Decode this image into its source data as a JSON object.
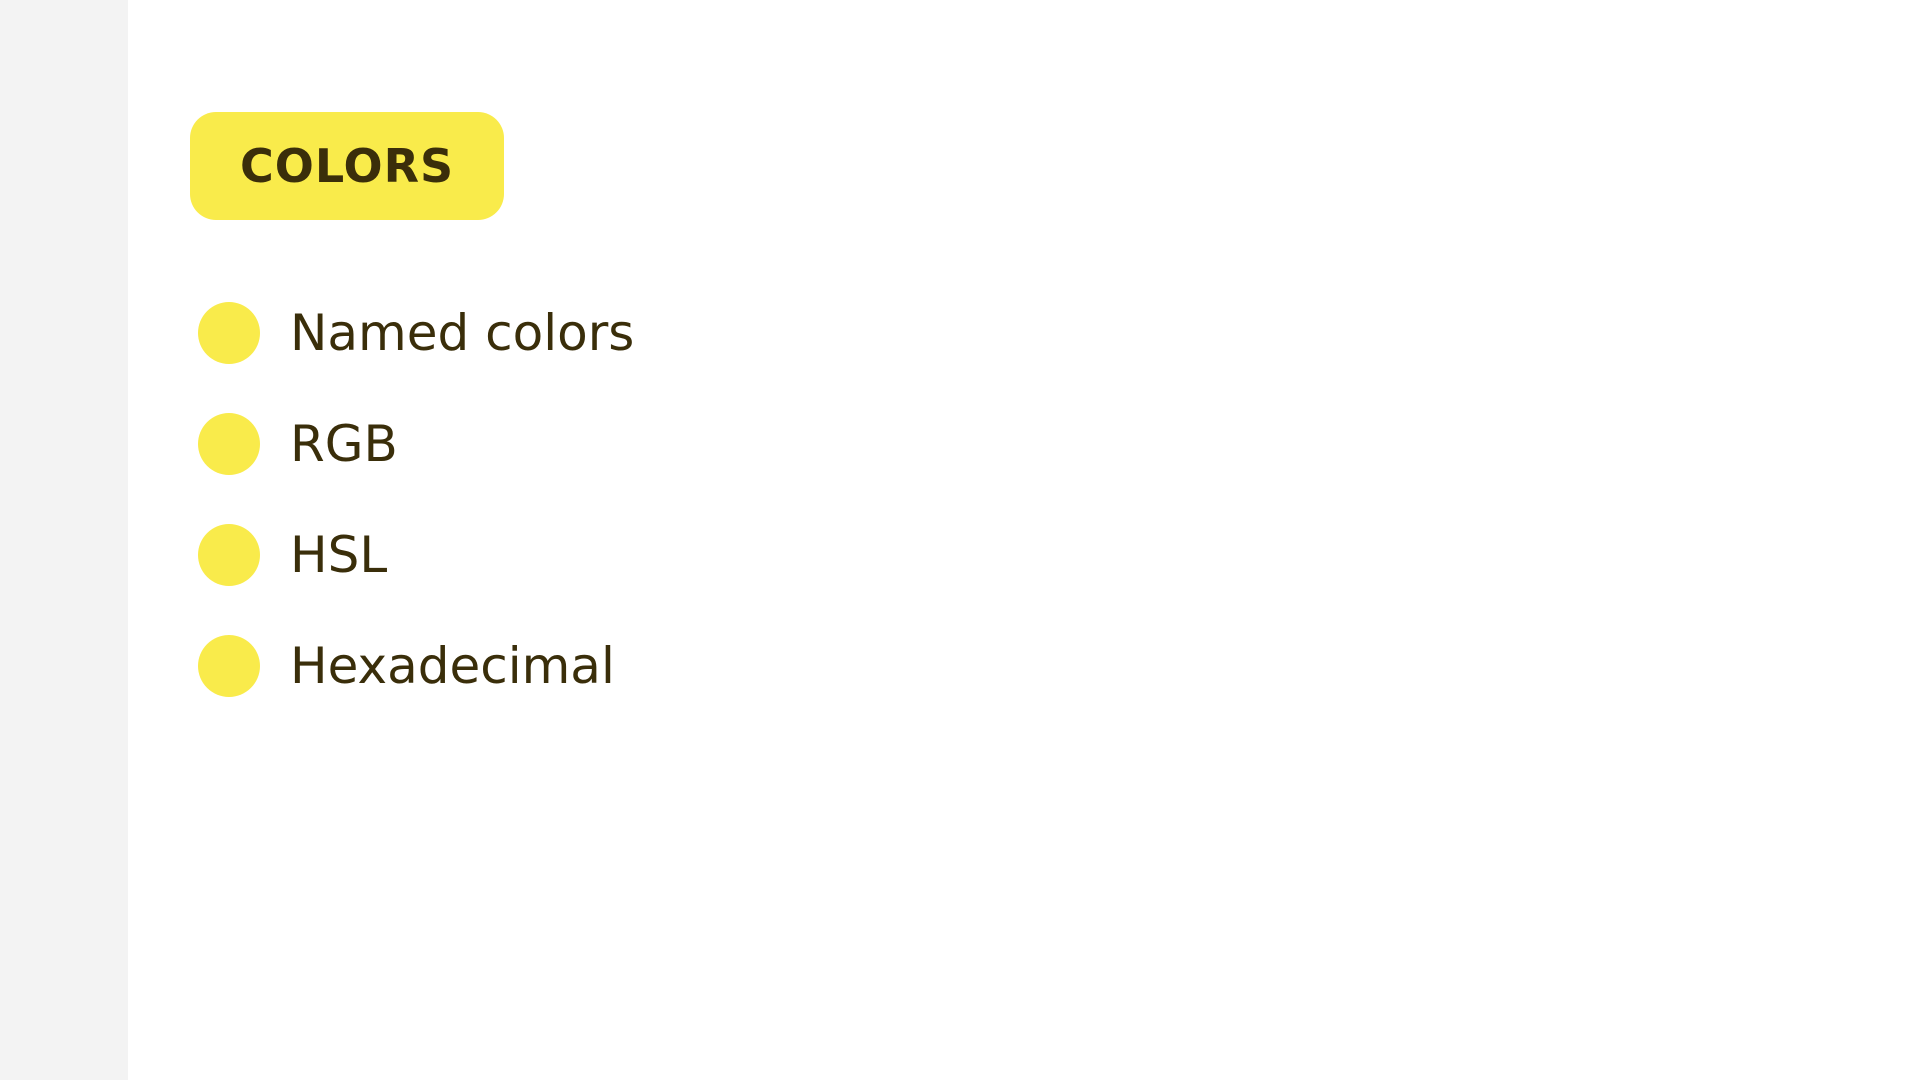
{
  "badge": {
    "label": "COLORS"
  },
  "items": [
    {
      "label": "Named colors"
    },
    {
      "label": "RGB"
    },
    {
      "label": "HSL"
    },
    {
      "label": "Hexadecimal"
    }
  ],
  "colors": {
    "accent": "#f9eb4b",
    "text": "#3a2e0a",
    "sidebar": "#f3f3f3",
    "background": "#ffffff"
  }
}
